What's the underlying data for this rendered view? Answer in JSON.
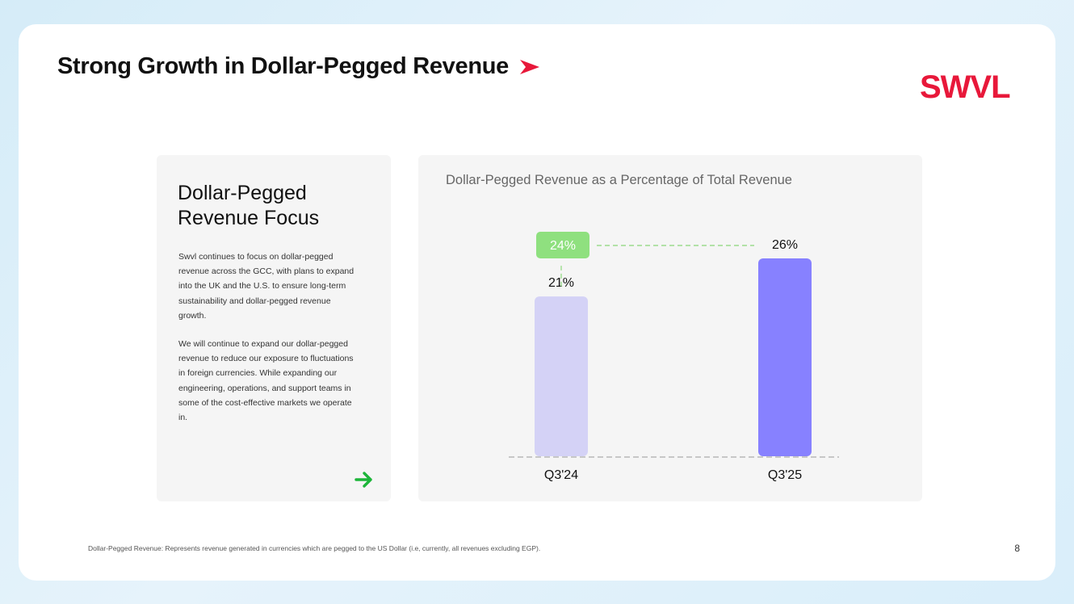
{
  "slide": {
    "title": "Strong Growth in Dollar-Pegged Revenue",
    "logo_text": "SWVL",
    "page_number": "8",
    "footnote": "Dollar-Pegged Revenue: Represents revenue generated in currencies which are pegged to the US Dollar (i.e, currently, all revenues excluding EGP).",
    "colors": {
      "brand_red": "#e8183a",
      "accent_green": "#1db53a"
    }
  },
  "focus_card": {
    "heading": "Dollar-Pegged Revenue Focus",
    "paragraph_1": "Swvl continues to focus on dollar-pegged revenue across the GCC, with plans to expand into the UK and the U.S. to ensure long-term sustainability and dollar-pegged revenue growth.",
    "paragraph_2": "We will continue to expand our dollar-pegged revenue to reduce our exposure to fluctuations in foreign currencies. While expanding our engineering, operations, and support teams in some of the cost-effective markets we operate in."
  },
  "chart_data": {
    "type": "bar",
    "title": "Dollar-Pegged Revenue as a Percentage of Total Revenue",
    "categories": [
      "Q3'24",
      "Q3'25"
    ],
    "values": [
      21,
      26
    ],
    "value_labels": [
      "21%",
      "26%"
    ],
    "colors": [
      "#d4d2f6",
      "#8781ff"
    ],
    "unit": "%",
    "ylim": [
      0,
      26
    ],
    "xlabel": "",
    "ylabel": "",
    "grid": false,
    "annotation": {
      "label": "24%",
      "value": 24,
      "color": "#8fe07f",
      "line_color": "#9bdc8d"
    }
  }
}
